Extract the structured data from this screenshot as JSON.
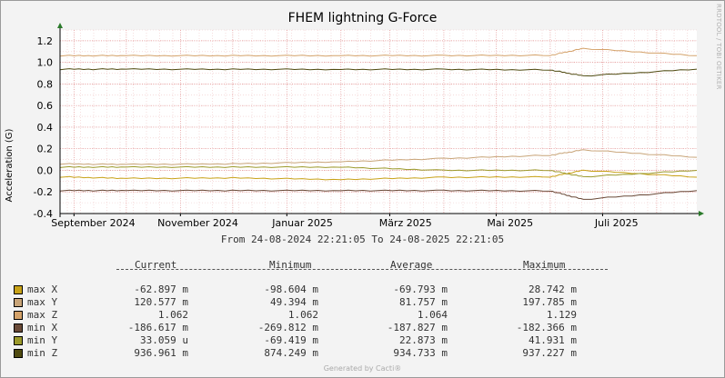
{
  "chart_data": {
    "type": "line",
    "title": "FHEM lightning G-Force",
    "watermark": "RRDTOOL / TOBI OETIKER",
    "ylabel": "Acceleration (G)",
    "ylim": [
      -0.4,
      1.3
    ],
    "y_ticks": [
      "1.2",
      "1.0",
      "0.8",
      "0.6",
      "0.4",
      "0.2",
      "0.0",
      "-0.2",
      "-0.4"
    ],
    "x_ticks": [
      "September 2024",
      "November 2024",
      "Januar 2025",
      "März 2025",
      "Mai 2025",
      "Juli 2025"
    ],
    "time_range": "From 24-08-2024 22:21:05 To 24-08-2025 22:21:05",
    "grid": true,
    "series": [
      {
        "name": "max X",
        "color": "#c8a218",
        "current": "-62.897 m",
        "minimum": "-98.604 m",
        "average": "-69.793 m",
        "maximum": "28.742 m",
        "x": [
          "2024-08-24",
          "2024-10-01",
          "2024-12-01",
          "2025-02-01",
          "2025-04-01",
          "2025-06-01",
          "2025-06-20",
          "2025-08-24"
        ],
        "values": [
          -0.06,
          -0.075,
          -0.07,
          -0.085,
          -0.065,
          -0.06,
          0.0,
          -0.063
        ]
      },
      {
        "name": "max Y",
        "color": "#c8a478",
        "current": "120.577 m",
        "minimum": "49.394 m",
        "average": "81.757 m",
        "maximum": "197.785 m",
        "x": [
          "2024-08-24",
          "2024-10-01",
          "2024-12-01",
          "2025-02-01",
          "2025-04-01",
          "2025-06-01",
          "2025-06-20",
          "2025-08-24"
        ],
        "values": [
          0.06,
          0.055,
          0.06,
          0.08,
          0.11,
          0.14,
          0.19,
          0.121
        ]
      },
      {
        "name": "max Z",
        "color": "#d4a26a",
        "current": "1.062",
        "minimum": "1.062",
        "average": "1.064",
        "maximum": "1.129",
        "x": [
          "2024-08-24",
          "2024-10-01",
          "2024-12-01",
          "2025-02-01",
          "2025-04-01",
          "2025-06-01",
          "2025-06-20",
          "2025-08-24"
        ],
        "values": [
          1.062,
          1.062,
          1.062,
          1.063,
          1.063,
          1.065,
          1.129,
          1.062
        ]
      },
      {
        "name": "min X",
        "color": "#6a4a38",
        "current": "-186.617 m",
        "minimum": "-269.812 m",
        "average": "-187.827 m",
        "maximum": "-182.366 m",
        "x": [
          "2024-08-24",
          "2024-10-01",
          "2024-12-01",
          "2025-02-01",
          "2025-04-01",
          "2025-06-01",
          "2025-06-20",
          "2025-08-24"
        ],
        "values": [
          -0.187,
          -0.187,
          -0.187,
          -0.187,
          -0.187,
          -0.19,
          -0.27,
          -0.187
        ]
      },
      {
        "name": "min Y",
        "color": "#9c9a2c",
        "current": "33.059 u",
        "minimum": "-69.419 m",
        "average": "22.873 m",
        "maximum": "41.931 m",
        "x": [
          "2024-08-24",
          "2024-10-01",
          "2024-12-01",
          "2025-02-01",
          "2025-04-01",
          "2025-06-01",
          "2025-06-20",
          "2025-08-24"
        ],
        "values": [
          0.03,
          0.03,
          0.03,
          0.03,
          0.0,
          0.0,
          -0.06,
          0.0
        ]
      },
      {
        "name": "min Z",
        "color": "#4f4a10",
        "current": "936.961 m",
        "minimum": "874.249 m",
        "average": "934.733 m",
        "maximum": "937.227 m",
        "x": [
          "2024-08-24",
          "2024-10-01",
          "2024-12-01",
          "2025-02-01",
          "2025-04-01",
          "2025-06-01",
          "2025-06-20",
          "2025-08-24"
        ],
        "values": [
          0.937,
          0.937,
          0.936,
          0.935,
          0.935,
          0.93,
          0.874,
          0.937
        ]
      }
    ]
  },
  "legend": {
    "headers": [
      "Current",
      "Minimum",
      "Average",
      "Maximum"
    ]
  },
  "footer": "Generated by Cacti®"
}
